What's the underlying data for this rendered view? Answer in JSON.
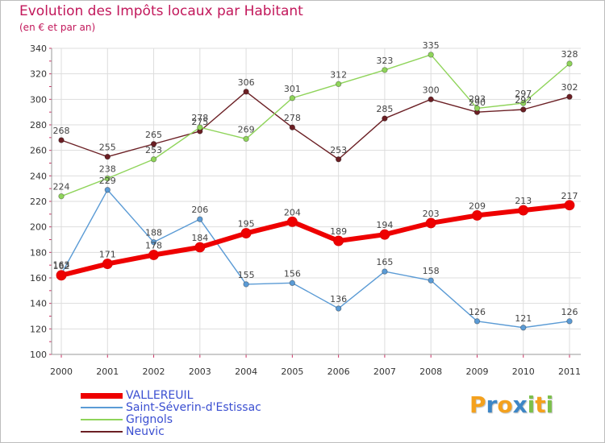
{
  "title": "Evolution des Impôts locaux par Habitant",
  "subtitle": "(en € et par an)",
  "logo": {
    "text": "Proxiti",
    "letters": [
      {
        "ch": "P",
        "color": "#f4a11d"
      },
      {
        "ch": "r",
        "color": "#3d86c6"
      },
      {
        "ch": "o",
        "color": "#f4a11d"
      },
      {
        "ch": "x",
        "color": "#3d86c6"
      },
      {
        "ch": "i",
        "color": "#7cc04b"
      },
      {
        "ch": "t",
        "color": "#f4a11d"
      },
      {
        "ch": "i",
        "color": "#7cc04b"
      }
    ]
  },
  "chart_data": {
    "type": "line",
    "title": "Evolution des Impôts locaux par Habitant",
    "subtitle": "(en € et par an)",
    "x": [
      "2000",
      "2001",
      "2002",
      "2003",
      "2004",
      "2005",
      "2006",
      "2007",
      "2008",
      "2009",
      "2010",
      "2011"
    ],
    "ylim": [
      100,
      340
    ],
    "yticks": [
      100,
      120,
      140,
      160,
      180,
      200,
      220,
      240,
      260,
      280,
      300,
      320,
      340
    ],
    "grid": true,
    "legend_position": "bottom-left",
    "series": [
      {
        "name": "VALLEREUIL",
        "color": "#ee0000",
        "values": [
          162,
          171,
          178,
          184,
          195,
          204,
          189,
          194,
          203,
          209,
          213,
          217
        ]
      },
      {
        "name": "Saint-Séverin-d'Estissac",
        "color": "#5b9bd5",
        "values": [
          163,
          229,
          188,
          206,
          155,
          156,
          136,
          165,
          158,
          126,
          121,
          126
        ]
      },
      {
        "name": "Grignols",
        "color": "#8fd45a",
        "values": [
          224,
          238,
          253,
          278,
          269,
          301,
          312,
          323,
          335,
          293,
          297,
          328
        ]
      },
      {
        "name": "Neuvic",
        "color": "#6b1f24",
        "values": [
          268,
          255,
          265,
          275,
          306,
          278,
          253,
          285,
          300,
          290,
          292,
          302
        ]
      }
    ]
  }
}
